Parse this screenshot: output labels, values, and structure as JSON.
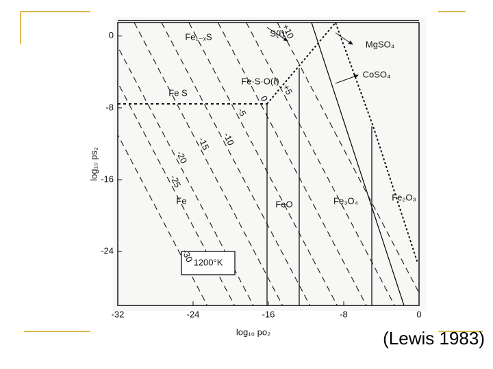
{
  "chart_data": {
    "type": "phase-diagram",
    "x_label": "log₁₀ po₂",
    "y_label": "log₁₀ ps₂",
    "xlim": [
      -32,
      0
    ],
    "ylim": [
      -30,
      1.5
    ],
    "xticks": [
      -32,
      -24,
      -16,
      -8,
      0
    ],
    "yticks": [
      0,
      -8,
      -16,
      -24
    ],
    "region_labels": [
      "Fe₁₋ₓS",
      "S(ℓ)",
      "MgSO₄",
      "CoSO₄",
      "Fe·S·O(ℓ)",
      "Fe S",
      "Fe",
      "FeO",
      "Fe₃O₄",
      "Fe₂O₃"
    ],
    "temperature_label": "1200°K",
    "contour_labels": [
      "-30",
      "-25",
      "-20",
      "-15",
      "-10",
      "-5",
      "0",
      "+5",
      "+10"
    ],
    "source": "(Lewis 1983)"
  }
}
